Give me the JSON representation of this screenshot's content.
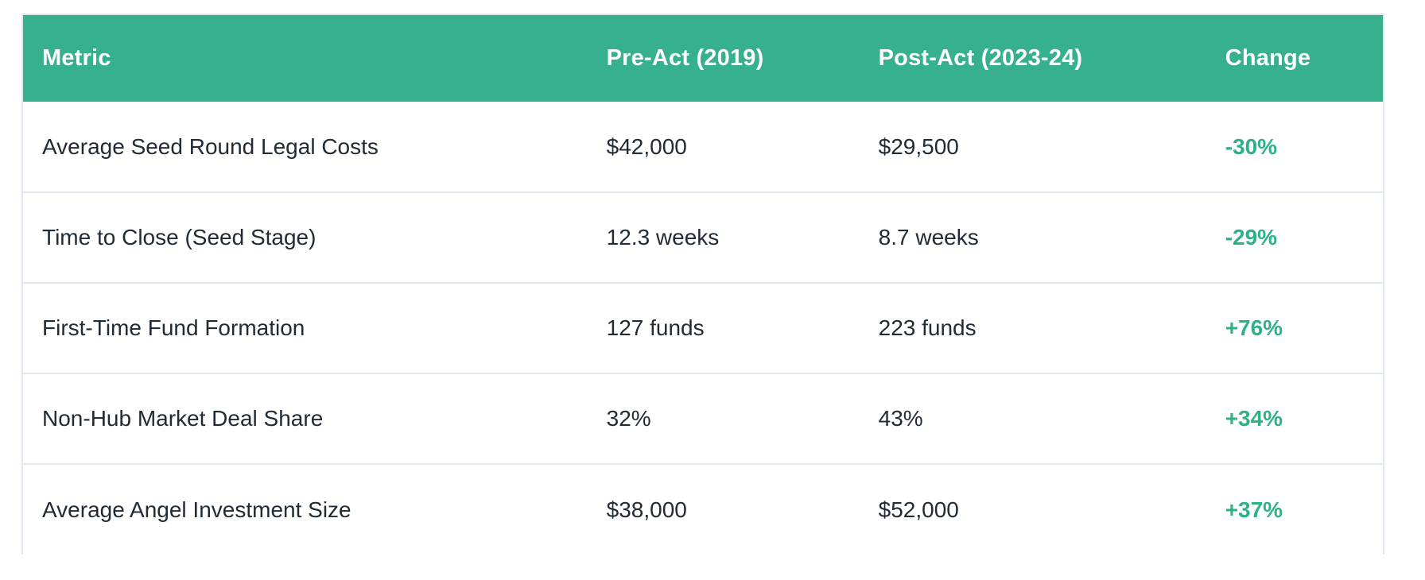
{
  "chart_data": {
    "type": "table",
    "columns": [
      "Metric",
      "Pre-Act (2019)",
      "Post-Act (2023-24)",
      "Change"
    ],
    "rows": [
      [
        "Average Seed Round Legal Costs",
        "$42,000",
        "$29,500",
        "-30%"
      ],
      [
        "Time to Close (Seed Stage)",
        "12.3 weeks",
        "8.7 weeks",
        "-29%"
      ],
      [
        "First-Time Fund Formation",
        "127 funds",
        "223 funds",
        "+76%"
      ],
      [
        "Non-Hub Market Deal Share",
        "32%",
        "43%",
        "+34%"
      ],
      [
        "Average Angel Investment Size",
        "$38,000",
        "$52,000",
        "+37%"
      ]
    ],
    "layout": {
      "header_alignment": "left",
      "cell_alignment": "left",
      "grid": "horizontal-row-dividers"
    }
  },
  "colors": {
    "header_background": "#36b08d",
    "header_text": "#ffffff",
    "body_text": "#212b36",
    "change_positive_negative_text": "#2db189",
    "row_divider": "#e2e8f0",
    "card_border": "#e2e8f0",
    "page_background": "#ffffff"
  }
}
